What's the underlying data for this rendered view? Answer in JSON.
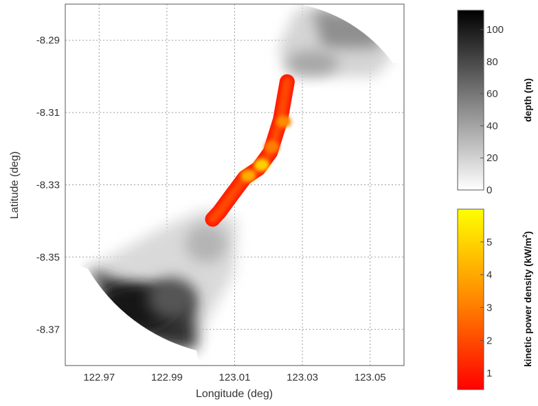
{
  "chart_data": [
    {
      "type": "heatmap",
      "xlabel": "Longitude (deg)",
      "ylabel": "Latitude (deg)",
      "xlim": [
        122.96,
        123.06
      ],
      "ylim": [
        -8.38,
        -8.28
      ],
      "xticks": [
        122.97,
        122.99,
        123.01,
        123.03,
        123.05
      ],
      "xtick_labels": [
        "122.97",
        "122.99",
        "123.01",
        "123.03",
        "123.05"
      ],
      "yticks": [
        -8.29,
        -8.31,
        -8.33,
        -8.35,
        -8.37
      ],
      "ytick_labels": [
        "-8.29",
        "-8.31",
        "-8.33",
        "-8.35",
        "-8.37"
      ],
      "grid": true,
      "layers": [
        {
          "name": "depth",
          "colormap": "gray (white=0, black=max)",
          "regions": [
            {
              "region": "north basin",
              "lon": 123.035,
              "lat": -8.293,
              "approx_depth_m": 55
            },
            {
              "region": "south basin deep part",
              "lon": 122.985,
              "lat": -8.365,
              "approx_depth_m": 105
            },
            {
              "region": "south basin shallow part",
              "lon": 123.0,
              "lat": -8.347,
              "approx_depth_m": 35
            }
          ]
        },
        {
          "name": "kinetic power density",
          "colormap": "red-orange-yellow",
          "channel_path": [
            {
              "lon": 123.0255,
              "lat": -8.3015
            },
            {
              "lon": 123.0235,
              "lat": -8.312
            },
            {
              "lon": 123.0205,
              "lat": -8.321
            },
            {
              "lon": 123.017,
              "lat": -8.3255
            },
            {
              "lon": 123.013,
              "lat": -8.328
            },
            {
              "lon": 123.009,
              "lat": -8.333
            },
            {
              "lon": 123.0055,
              "lat": -8.3375
            },
            {
              "lon": 123.0035,
              "lat": -8.3395
            }
          ],
          "hotspots": [
            {
              "lon": 123.018,
              "lat": -8.3245,
              "value": 5
            },
            {
              "lon": 123.014,
              "lat": -8.3275,
              "value": 4.2
            },
            {
              "lon": 123.0245,
              "lat": -8.3125,
              "value": 3.5
            },
            {
              "lon": 123.021,
              "lat": -8.3195,
              "value": 3.2
            }
          ]
        }
      ],
      "colorbars": [
        {
          "label": "depth (m)",
          "range": [
            0,
            112
          ],
          "ticks": [
            0,
            20,
            40,
            60,
            80,
            100
          ],
          "tick_labels": [
            "0",
            "20",
            "40",
            "60",
            "80",
            "100"
          ],
          "colors": [
            "#ffffff",
            "#000000"
          ]
        },
        {
          "label_main": "kinetic power density (kW/m",
          "label_sup": "2",
          "label_end": ")",
          "range": [
            0.5,
            6
          ],
          "ticks": [
            1,
            2,
            3,
            4,
            5
          ],
          "tick_labels": [
            "1",
            "2",
            "3",
            "4",
            "5"
          ],
          "colors": [
            "#ff0000",
            "#ff8800",
            "#ffff00"
          ]
        }
      ]
    }
  ]
}
